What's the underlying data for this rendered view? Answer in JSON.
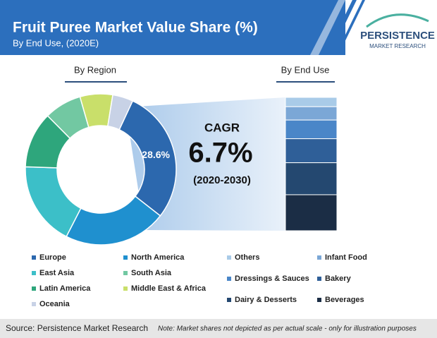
{
  "header": {
    "title": "Fruit Puree Market Value Share (%)",
    "subtitle": "By End Use, (2020E)",
    "logo_name": "PERSISTENCE",
    "logo_sub": "MARKET RESEARCH"
  },
  "chart_data": [
    {
      "type": "donut",
      "title": "By Region",
      "categories": [
        "Europe",
        "North America",
        "East Asia",
        "Latin America",
        "South Asia",
        "Middle East & Africa",
        "Oceania"
      ],
      "values": [
        28.6,
        22,
        18,
        12,
        8,
        7,
        4.4
      ],
      "value_labels": [
        "28.6%",
        null,
        null,
        null,
        null,
        null,
        null
      ],
      "colors": [
        "#2c68ae",
        "#1f90cf",
        "#3cbfc8",
        "#2ea67c",
        "#72c8a2",
        "#c9df6a",
        "#c8d2e6"
      ]
    },
    {
      "type": "stack",
      "title": "By End Use",
      "series": [
        {
          "name": "Others",
          "color": "#a9cbe8",
          "values": [
            7
          ]
        },
        {
          "name": "Infant Food",
          "color": "#7ba7d6",
          "values": [
            10
          ]
        },
        {
          "name": "Dressings & Sauces",
          "color": "#4a86c8",
          "values": [
            14
          ]
        },
        {
          "name": "Bakery",
          "color": "#2f5f98",
          "values": [
            18
          ]
        },
        {
          "name": "Dairy & Desserts",
          "color": "#244870",
          "values": [
            24
          ]
        },
        {
          "name": "Beverages",
          "color": "#1b2d45",
          "values": [
            27
          ]
        }
      ]
    }
  ],
  "cagr": {
    "title": "CAGR",
    "value": "6.7%",
    "period": "(2020-2030)"
  },
  "footer": {
    "source": "Source: Persistence Market Research",
    "note": "Note: Market shares not depicted as per actual scale - only for illustration purposes"
  }
}
